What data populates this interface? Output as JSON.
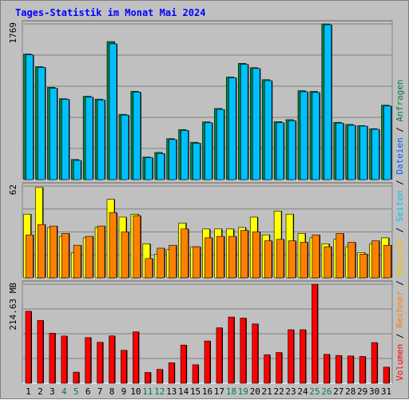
{
  "chart_data": {
    "type": "bar",
    "title": "Tages-Statistik im Monat Mai 2024",
    "categories": [
      "1",
      "2",
      "3",
      "4",
      "5",
      "6",
      "7",
      "8",
      "9",
      "10",
      "11",
      "12",
      "13",
      "14",
      "15",
      "16",
      "17",
      "18",
      "19",
      "20",
      "21",
      "22",
      "23",
      "24",
      "25",
      "26",
      "27",
      "28",
      "29",
      "30",
      "31"
    ],
    "weekend_days": [
      "4",
      "5",
      "11",
      "12",
      "18",
      "19",
      "25",
      "26"
    ],
    "panels": [
      {
        "id": "top",
        "max_label": "1769",
        "ymax": 1769,
        "series": [
          {
            "name": "Anfragen",
            "color": "#008040",
            "values": [
              1427,
              1284,
              1049,
              920,
              229,
              947,
              915,
              1569,
              742,
              1004,
              257,
              309,
              466,
              569,
              425,
              656,
              809,
              1166,
              1321,
              1272,
              1136,
              658,
              681,
              1011,
              1003,
              1769,
              651,
              627,
              614,
              579,
              846
            ]
          },
          {
            "name": "Dateien",
            "color": "#00c0ff",
            "values": [
              1418,
              1275,
              1039,
              912,
              218,
              937,
              905,
              1543,
              733,
              995,
              250,
              297,
              455,
              559,
              414,
              646,
              797,
              1157,
              1310,
              1263,
              1125,
              647,
              670,
              998,
              990,
              1760,
              643,
              617,
              608,
              572,
              837
            ]
          }
        ]
      },
      {
        "id": "middle",
        "max_label": "62",
        "ymax": 62,
        "series": [
          {
            "name": "Seiten",
            "color": "#0060ff",
            "values": [
              0,
              0,
              0,
              0,
              0,
              0,
              0,
              0,
              0,
              0,
              0,
              0,
              0,
              0,
              0,
              0,
              0,
              0,
              0,
              0,
              0,
              0,
              0,
              0,
              0,
              0,
              0,
              0,
              0,
              0,
              0
            ]
          },
          {
            "name": "Besuche",
            "color": "#ffff00",
            "values": [
              43,
              61,
              34,
              28,
              17,
              27,
              34,
              53,
              41,
              43,
              23,
              16,
              19,
              37,
              21,
              33,
              33,
              33,
              34,
              41,
              29,
              45,
              43,
              30,
              27,
              23,
              26,
              21,
              17,
              23,
              27
            ]
          },
          {
            "name": "Rechner",
            "color": "#ff8000",
            "values": [
              29,
              36,
              35,
              30,
              22,
              28,
              35,
              44,
              31,
              42,
              13,
              20,
              22,
              33,
              21,
              27,
              28,
              28,
              32,
              31,
              25,
              26,
              25,
              24,
              29,
              21,
              30,
              24,
              16,
              25,
              22
            ]
          }
        ]
      },
      {
        "id": "bottom",
        "max_label": "214.63 MB",
        "ymax": 214.63,
        "series": [
          {
            "name": "Volumen",
            "color": "#ff0000",
            "values": [
              156.1,
              136.1,
              108.6,
              102.3,
              24.1,
              99.0,
              88.8,
              102.6,
              71.5,
              111.4,
              23.4,
              30.0,
              44.4,
              82.8,
              40.1,
              91.6,
              120.2,
              143.6,
              141.3,
              128.6,
              61.8,
              66.6,
              116.0,
              116.0,
              214.6,
              62.7,
              60.2,
              59.2,
              58.1,
              88.2,
              35.0
            ]
          }
        ]
      }
    ],
    "right_legend": [
      {
        "label": "Volumen",
        "color": "#ff0000"
      },
      {
        "label": "Rechner",
        "color": "#ff8000"
      },
      {
        "label": "Besuche",
        "color": "#ffc000"
      },
      {
        "label": "Seiten",
        "color": "#00c0ff"
      },
      {
        "label": "Dateien",
        "color": "#0060ff"
      },
      {
        "label": "Anfragen",
        "color": "#008040"
      }
    ],
    "legend_separator": " / ",
    "colors": {
      "frame_bg": "#c0c0c0",
      "plot_bg": "#c0c0c0",
      "grid": "#808080",
      "title": "#0000ff",
      "label": "#000000",
      "weekend_label": "#008040",
      "bar_shadow": "#000000"
    }
  }
}
